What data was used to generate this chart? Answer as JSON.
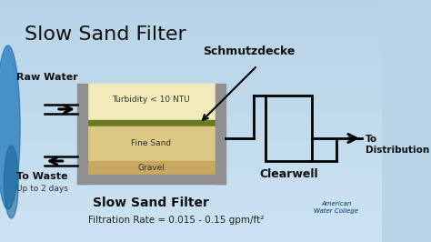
{
  "title": "Slow Sand Filter",
  "bg_color": "#b8d4e8",
  "filter_label": "Slow Sand Filter",
  "clearwell_label": "Clearwell",
  "schmutzdecke_label": "Schmutzdecke",
  "raw_water_label": "Raw Water",
  "to_waste_label": "To Waste",
  "to_waste_sub": "Up to 2 days",
  "to_distribution_label": "To\nDistribution",
  "turbidity_label": "Turbidity < 10 NTU",
  "fine_sand_label": "Fine Sand",
  "gravel_label": "Gravel",
  "filtration_rate_label": "Filtration Rate = 0.015 - 0.15 gpm/ft²",
  "water_color": "#f0ebb8",
  "sand_color": "#dcc882",
  "gravel_color": "#c8a860",
  "schmutz_color": "#6a7a20",
  "wall_color": "#909090",
  "title_fontsize": 16,
  "label_fontsize": 8,
  "small_fontsize": 6.5,
  "bold_label_fontsize": 9
}
